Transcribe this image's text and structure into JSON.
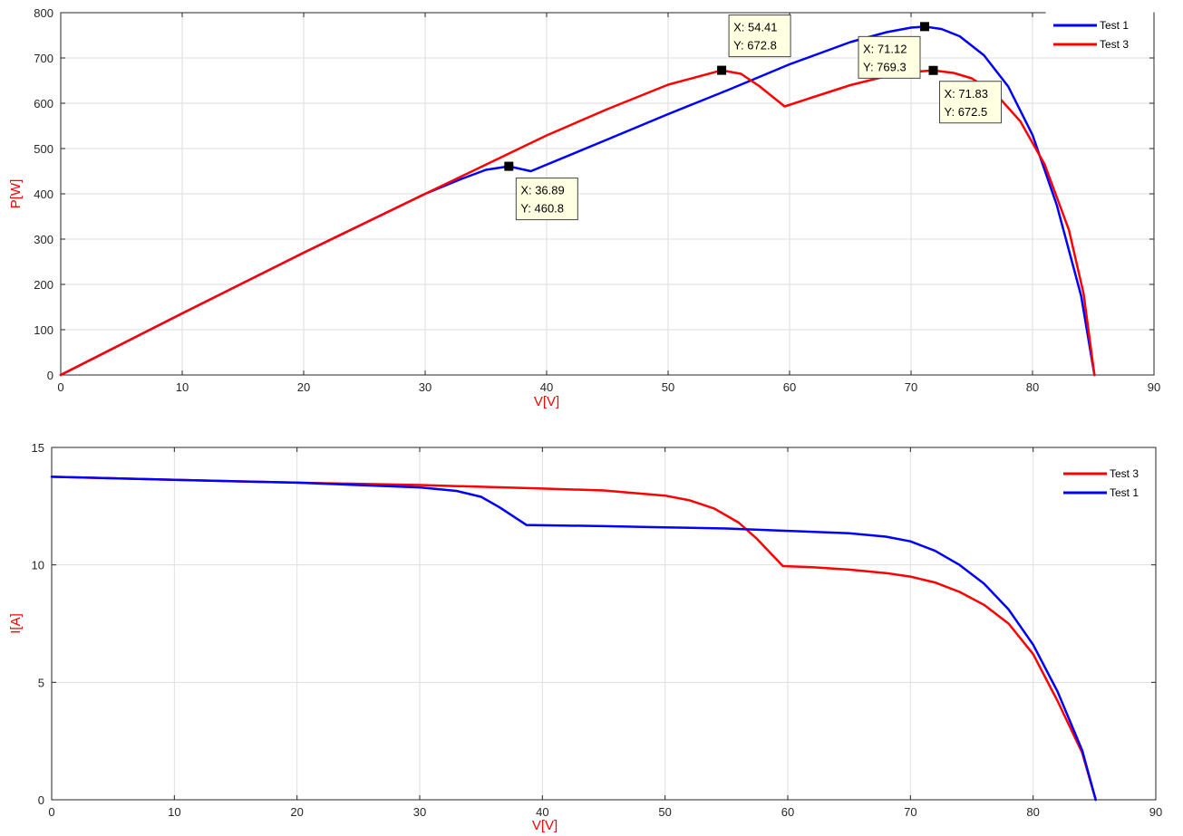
{
  "chart_data": [
    {
      "type": "line",
      "xlabel": "V[V]",
      "ylabel": "P[W]",
      "label_color": "#ff0000",
      "xlim": [
        0,
        90
      ],
      "ylim": [
        0,
        800
      ],
      "xticks": [
        0,
        10,
        20,
        30,
        40,
        50,
        60,
        70,
        80,
        90
      ],
      "yticks": [
        0,
        100,
        200,
        300,
        400,
        500,
        600,
        700,
        800
      ],
      "grid": true,
      "legend_position": "top-right",
      "series": [
        {
          "name": "Test 1",
          "color": "#0000ff",
          "x": [
            0,
            10,
            20,
            30,
            33,
            35,
            36.89,
            38.7,
            45,
            50,
            55,
            60,
            65,
            68,
            70,
            71.12,
            72.5,
            74,
            76,
            78,
            80,
            82,
            84,
            85.1
          ],
          "y": [
            0,
            136,
            270,
            400,
            433,
            453,
            460.8,
            450,
            520,
            576,
            630,
            686,
            735,
            757,
            767,
            769.3,
            764,
            748,
            706,
            637,
            530,
            375,
            175,
            0
          ]
        },
        {
          "name": "Test 3",
          "color": "#ff0000",
          "x": [
            0,
            10,
            20,
            30,
            40,
            45,
            50,
            54.41,
            56,
            57.5,
            59.6,
            62,
            65,
            68,
            70,
            71.83,
            73.5,
            75,
            77,
            79,
            81,
            83,
            84.2,
            85.1
          ],
          "y": [
            0,
            136,
            270,
            400,
            529,
            587,
            641,
            672.8,
            665,
            638,
            593,
            614,
            640,
            660,
            669,
            672.5,
            667,
            655,
            620,
            560,
            465,
            320,
            180,
            0
          ]
        }
      ],
      "datatips": [
        {
          "x": 36.89,
          "y": 460.8,
          "text_x": "X: 36.89",
          "text_y": "Y: 460.8"
        },
        {
          "x": 54.41,
          "y": 672.8,
          "text_x": "X: 54.41",
          "text_y": "Y: 672.8"
        },
        {
          "x": 71.12,
          "y": 769.3,
          "text_x": "X: 71.12",
          "text_y": "Y: 769.3"
        },
        {
          "x": 71.83,
          "y": 672.5,
          "text_x": "X: 71.83",
          "text_y": "Y: 672.5"
        }
      ]
    },
    {
      "type": "line",
      "xlabel": "V[V]",
      "ylabel": "I[A]",
      "label_color": "#ff0000",
      "xlim": [
        0,
        90
      ],
      "ylim": [
        0,
        15
      ],
      "xticks": [
        0,
        10,
        20,
        30,
        40,
        50,
        60,
        70,
        80,
        90
      ],
      "yticks": [
        0,
        5,
        10,
        15
      ],
      "grid": true,
      "legend_position": "top-right",
      "series": [
        {
          "name": "Test 3",
          "color": "#ff0000",
          "x": [
            0,
            10,
            20,
            30,
            40,
            45,
            50,
            52,
            54,
            56,
            57.5,
            59.6,
            62,
            65,
            68,
            70,
            72,
            74,
            76,
            78,
            80,
            82,
            84,
            85.1
          ],
          "y": [
            13.75,
            13.62,
            13.5,
            13.4,
            13.25,
            13.17,
            12.95,
            12.75,
            12.4,
            11.8,
            11.1,
            9.95,
            9.9,
            9.8,
            9.65,
            9.5,
            9.25,
            8.85,
            8.3,
            7.5,
            6.2,
            4.2,
            2.0,
            0
          ]
        },
        {
          "name": "Test 1",
          "color": "#0000ff",
          "x": [
            0,
            10,
            20,
            30,
            33,
            35,
            36.5,
            38.7,
            45,
            50,
            55,
            60,
            65,
            68,
            70,
            72,
            74,
            76,
            78,
            80,
            82,
            84,
            85.1
          ],
          "y": [
            13.75,
            13.62,
            13.5,
            13.3,
            13.15,
            12.9,
            12.45,
            11.7,
            11.65,
            11.6,
            11.55,
            11.45,
            11.35,
            11.2,
            11.0,
            10.6,
            10.0,
            9.2,
            8.1,
            6.6,
            4.6,
            2.1,
            0
          ]
        }
      ]
    }
  ]
}
